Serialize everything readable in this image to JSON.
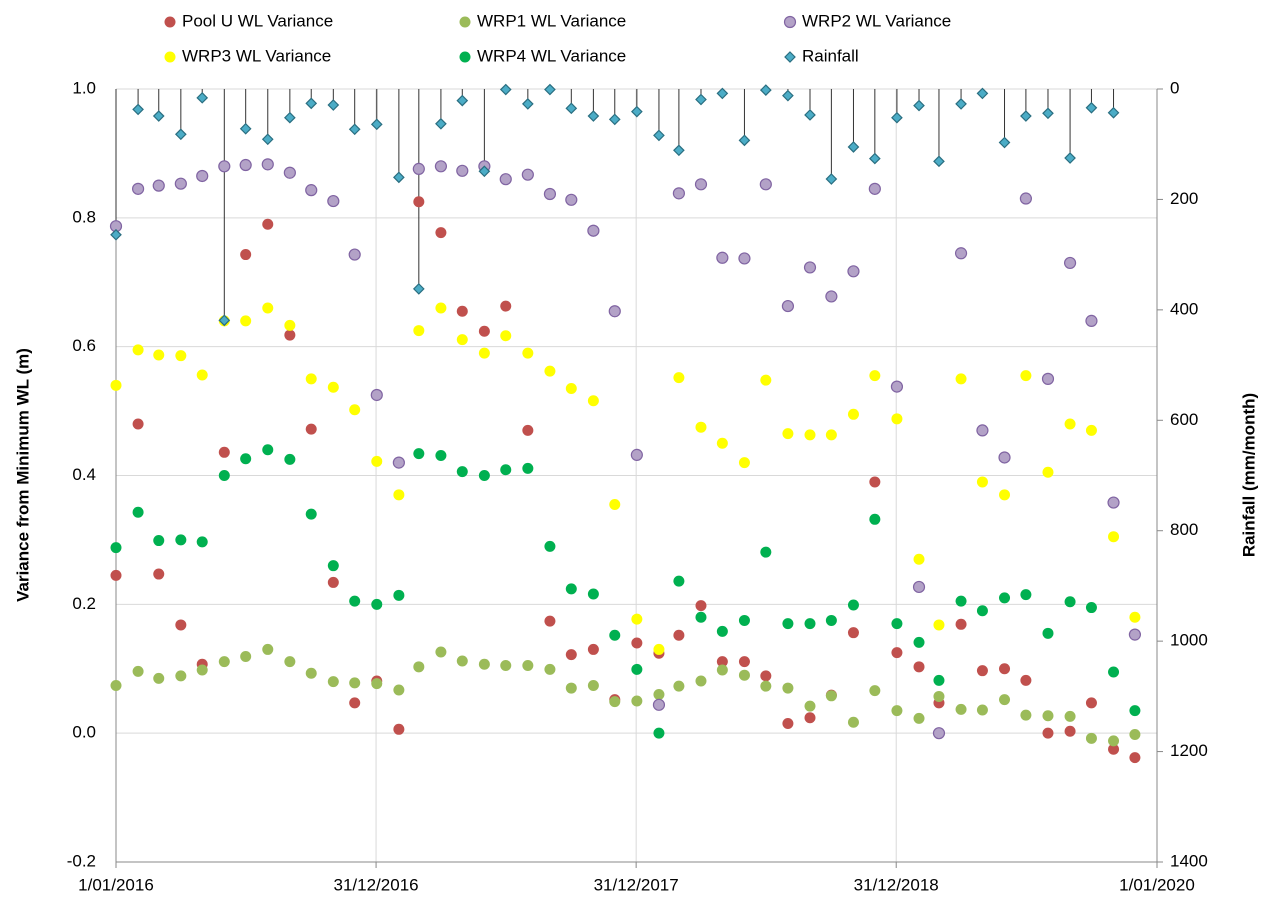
{
  "chart_data": {
    "type": "scatter",
    "y_label": "Variance from Minimum WL (m)",
    "y2_label": "Rainfall (mm/month)",
    "x": [
      "2016-01-01",
      "2016-02-01",
      "2016-03-01",
      "2016-04-01",
      "2016-05-01",
      "2016-06-01",
      "2016-07-01",
      "2016-08-01",
      "2016-09-01",
      "2016-10-01",
      "2016-11-01",
      "2016-12-01",
      "2017-01-01",
      "2017-02-01",
      "2017-03-01",
      "2017-04-01",
      "2017-05-01",
      "2017-06-01",
      "2017-07-01",
      "2017-08-01",
      "2017-09-01",
      "2017-10-01",
      "2017-11-01",
      "2017-12-01",
      "2018-01-01",
      "2018-02-01",
      "2018-03-01",
      "2018-04-01",
      "2018-05-01",
      "2018-06-01",
      "2018-07-01",
      "2018-08-01",
      "2018-09-01",
      "2018-10-01",
      "2018-11-01",
      "2018-12-01",
      "2019-01-01",
      "2019-02-01",
      "2019-03-01",
      "2019-04-01",
      "2019-05-01",
      "2019-06-01",
      "2019-07-01",
      "2019-08-01",
      "2019-09-01",
      "2019-10-01",
      "2019-11-01",
      "2019-12-01"
    ],
    "xlim": [
      "2016-01-01",
      "2020-01-01"
    ],
    "xticks": [
      {
        "value": "2016-01-01",
        "label": "1/01/2016"
      },
      {
        "value": "2016-12-31",
        "label": "31/12/2016"
      },
      {
        "value": "2017-12-31",
        "label": "31/12/2017"
      },
      {
        "value": "2018-12-31",
        "label": "31/12/2018"
      },
      {
        "value": "2020-01-01",
        "label": "1/01/2020"
      }
    ],
    "ylim": [
      -0.2,
      1.0
    ],
    "yticks": [
      -0.2,
      {
        "value": 0,
        "label": "0.0"
      },
      0.2,
      0.4,
      0.6,
      0.8,
      {
        "value": 1.0,
        "label": "1.0"
      }
    ],
    "y2lim": [
      0,
      1400
    ],
    "y2ticks": [
      0,
      200,
      400,
      600,
      800,
      1000,
      1200,
      1400
    ],
    "y2_reversed": true,
    "grid": true,
    "legend": "top",
    "series": [
      {
        "name": "Pool U WL Variance",
        "color": "#c0504d",
        "marker": "circle",
        "values": [
          0.245,
          0.48,
          0.247,
          0.168,
          0.107,
          0.436,
          0.743,
          0.79,
          0.618,
          0.472,
          0.234,
          0.047,
          0.081,
          0.006,
          0.825,
          0.777,
          0.655,
          0.624,
          0.663,
          0.47,
          0.174,
          0.122,
          0.13,
          0.052,
          0.14,
          0.124,
          0.152,
          0.198,
          0.111,
          0.111,
          0.089,
          0.015,
          0.024,
          0.059,
          0.156,
          0.39,
          0.125,
          0.103,
          0.047,
          0.169,
          0.097,
          0.1,
          0.082,
          0.0,
          0.003,
          0.047,
          -0.025,
          -0.038
        ]
      },
      {
        "name": "WRP1 WL Variance",
        "color": "#9bbb59",
        "marker": "circle",
        "values": [
          0.074,
          0.096,
          0.085,
          0.089,
          0.098,
          0.111,
          0.119,
          0.13,
          0.111,
          0.093,
          0.08,
          0.078,
          0.077,
          0.067,
          0.103,
          0.126,
          0.112,
          0.107,
          0.105,
          0.105,
          0.099,
          0.07,
          0.074,
          0.049,
          0.05,
          0.06,
          0.073,
          0.081,
          0.098,
          0.09,
          0.073,
          0.07,
          0.042,
          0.058,
          0.017,
          0.066,
          0.035,
          0.023,
          0.057,
          0.037,
          0.036,
          0.052,
          0.028,
          0.027,
          0.026,
          -0.008,
          -0.012,
          -0.002
        ]
      },
      {
        "name": "WRP2 WL Variance",
        "color": "#b3a2c7",
        "edgecolor": "#8064a2",
        "marker": "circle",
        "values": [
          0.787,
          0.845,
          0.85,
          0.853,
          0.865,
          0.88,
          0.882,
          0.883,
          0.87,
          0.843,
          0.826,
          0.743,
          0.525,
          0.42,
          0.876,
          0.88,
          0.873,
          0.88,
          0.86,
          0.867,
          0.837,
          0.828,
          0.78,
          0.655,
          0.432,
          0.044,
          0.838,
          0.852,
          0.738,
          0.737,
          0.852,
          0.663,
          0.723,
          0.678,
          0.717,
          0.845,
          0.538,
          0.227,
          0.0,
          0.745,
          0.47,
          0.428,
          0.83,
          0.55,
          0.73,
          0.64,
          0.358,
          0.153
        ]
      },
      {
        "name": "WRP3 WL Variance",
        "color": "#ffff00",
        "marker": "circle",
        "values": [
          0.54,
          0.595,
          0.587,
          0.586,
          0.556,
          0.64,
          0.64,
          0.66,
          0.633,
          0.55,
          0.537,
          0.502,
          0.422,
          0.37,
          0.625,
          0.66,
          0.611,
          0.59,
          0.617,
          0.59,
          0.562,
          0.535,
          0.516,
          0.355,
          0.177,
          0.13,
          0.552,
          0.475,
          0.45,
          0.42,
          0.548,
          0.465,
          0.463,
          0.463,
          0.495,
          0.555,
          0.488,
          0.27,
          0.168,
          0.55,
          0.39,
          0.37,
          0.555,
          0.405,
          0.48,
          0.47,
          0.305,
          0.18
        ]
      },
      {
        "name": "WRP4 WL Variance",
        "color": "#00b050",
        "marker": "circle",
        "values": [
          0.288,
          0.343,
          0.299,
          0.3,
          0.297,
          0.4,
          0.426,
          0.44,
          0.425,
          0.34,
          0.26,
          0.205,
          0.2,
          0.214,
          0.434,
          0.431,
          0.406,
          0.4,
          0.409,
          0.411,
          0.29,
          0.224,
          0.216,
          0.152,
          0.099,
          0.0,
          0.236,
          0.18,
          0.158,
          0.175,
          0.281,
          0.17,
          0.17,
          0.175,
          0.199,
          0.332,
          0.17,
          0.141,
          0.082,
          0.205,
          0.19,
          0.21,
          0.215,
          0.155,
          0.204,
          0.195,
          0.095,
          0.035
        ]
      },
      {
        "name": "Rainfall",
        "color": "#4bacc6",
        "edgecolor": "#2a6e80",
        "marker": "diamond",
        "axis": "y2",
        "droplines": true,
        "values": [
          264,
          37,
          49,
          82,
          16,
          419,
          72,
          91,
          52,
          26,
          29,
          73,
          64,
          160,
          362,
          63,
          21,
          149,
          1,
          27,
          1,
          35,
          49,
          55,
          41,
          84,
          111,
          19,
          8,
          93,
          2,
          12,
          47,
          163,
          105,
          126,
          52,
          30,
          131,
          27,
          8,
          97,
          49,
          44,
          125,
          34,
          43,
          null
        ]
      }
    ]
  }
}
